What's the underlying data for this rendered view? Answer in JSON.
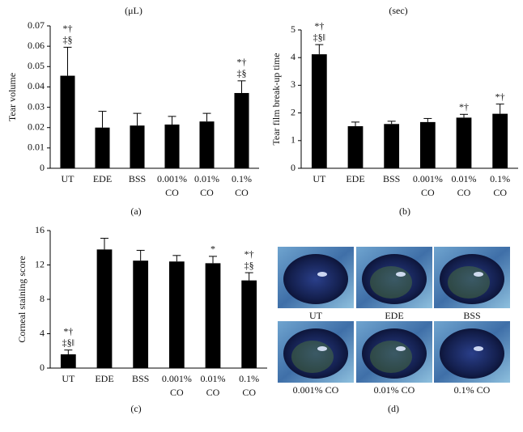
{
  "chart_data": [
    {
      "type": "bar",
      "unit": "(μL)",
      "y_label": "Tear volume",
      "panel_label": "(a)",
      "categories": [
        "UT",
        "EDE",
        "BSS",
        "0.001% CO",
        "0.01% CO",
        "0.1% CO"
      ],
      "values": [
        0.0455,
        0.02,
        0.021,
        0.0215,
        0.023,
        0.037
      ],
      "errors": [
        0.014,
        0.008,
        0.006,
        0.004,
        0.004,
        0.006
      ],
      "annotations": [
        [
          "*†",
          "‡§"
        ],
        null,
        null,
        null,
        null,
        [
          "*†",
          "‡§"
        ]
      ],
      "color": "#000000",
      "ylim": [
        0,
        0.07
      ],
      "yticks": [
        0,
        0.01,
        0.02,
        0.03,
        0.04,
        0.05,
        0.06,
        0.07
      ]
    },
    {
      "type": "bar",
      "unit": "(sec)",
      "y_label": "Tear film break-up time",
      "panel_label": "(b)",
      "categories": [
        "UT",
        "EDE",
        "BSS",
        "0.001% CO",
        "0.01% CO",
        "0.1% CO"
      ],
      "values": [
        4.12,
        1.52,
        1.6,
        1.67,
        1.83,
        1.97
      ],
      "errors": [
        0.35,
        0.15,
        0.1,
        0.13,
        0.12,
        0.35
      ],
      "annotations": [
        [
          "*†",
          "‡§‖"
        ],
        null,
        null,
        null,
        [
          "*†"
        ],
        [
          "*†"
        ]
      ],
      "color": "#000000",
      "ylim": [
        0,
        5
      ],
      "yticks": [
        0,
        1,
        2,
        3,
        4,
        5
      ]
    },
    {
      "type": "bar",
      "y_label": "Corneal staining score",
      "panel_label": "(c)",
      "categories": [
        "UT",
        "EDE",
        "BSS",
        "0.001% CO",
        "0.01% CO",
        "0.1% CO"
      ],
      "values": [
        1.6,
        13.8,
        12.5,
        12.4,
        12.2,
        10.2
      ],
      "errors": [
        0.5,
        1.3,
        1.2,
        0.7,
        0.8,
        0.9
      ],
      "annotations": [
        [
          "*†",
          "‡§‖"
        ],
        null,
        null,
        null,
        [
          "*"
        ],
        [
          "*†",
          "‡§"
        ]
      ],
      "color": "#000000",
      "ylim": [
        0,
        16
      ],
      "yticks": [
        0,
        4,
        8,
        12,
        16
      ]
    }
  ],
  "photos": {
    "labels": [
      "UT",
      "EDE",
      "BSS",
      "0.001% CO",
      "0.01% CO",
      "0.1% CO"
    ],
    "panel_label": "(d)"
  }
}
